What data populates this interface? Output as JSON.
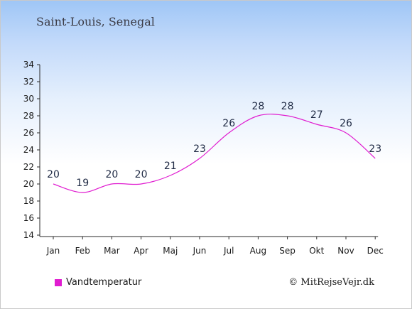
{
  "header": {
    "title": "Saint-Louis, Senegal"
  },
  "chart_data": {
    "type": "line",
    "categories": [
      "Jan",
      "Feb",
      "Mar",
      "Apr",
      "Maj",
      "Jun",
      "Jul",
      "Aug",
      "Sep",
      "Okt",
      "Nov",
      "Dec"
    ],
    "series": [
      {
        "name": "Vandtemperatur",
        "values": [
          20,
          19,
          20,
          20,
          21,
          23,
          26,
          28,
          28,
          27,
          26,
          23
        ],
        "color": "#e01cd0"
      }
    ],
    "yticks": [
      14,
      16,
      18,
      20,
      22,
      24,
      26,
      28,
      30,
      32,
      34
    ],
    "ylim": [
      14,
      34
    ],
    "grid": false,
    "legend_position": "bottom-left"
  },
  "legend": {
    "label": "Vandtemperatur",
    "color": "#e01cd0"
  },
  "credit": "© MitRejseVejr.dk"
}
